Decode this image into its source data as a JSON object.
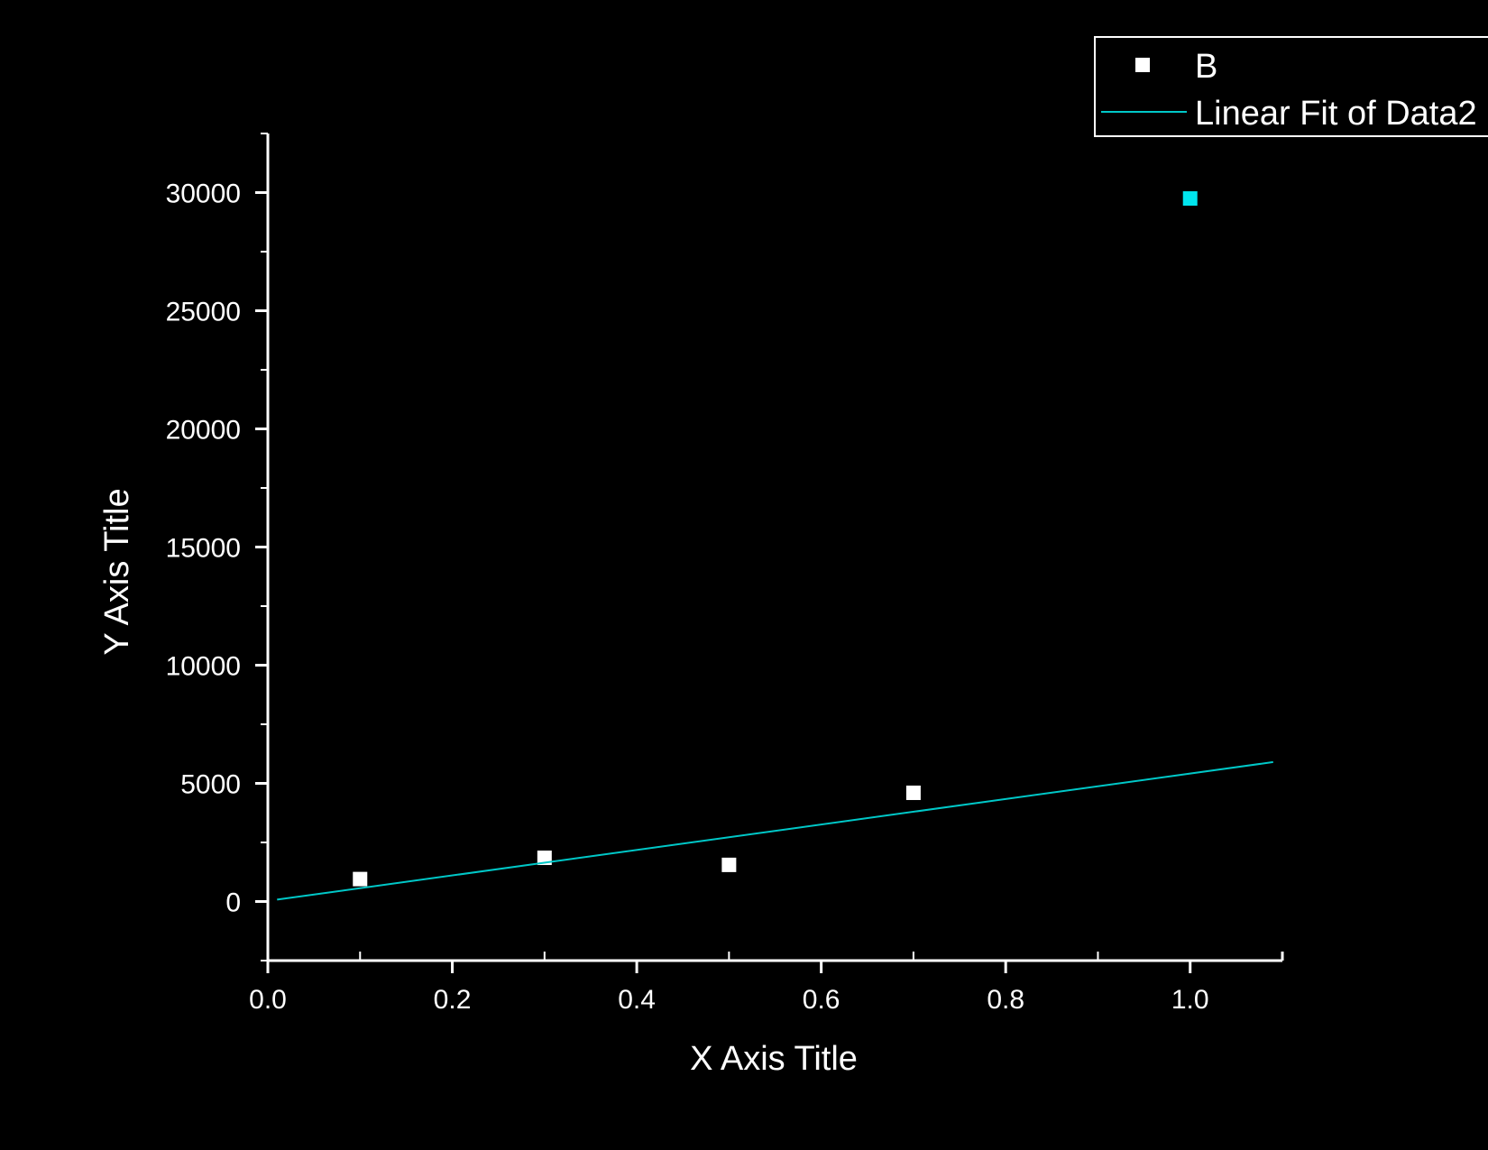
{
  "chart_data": {
    "type": "scatter",
    "title": "",
    "xlabel": "X Axis Title",
    "ylabel": "Y Axis Title",
    "xlim": [
      0.0,
      1.1
    ],
    "ylim": [
      -2500,
      32500
    ],
    "x_ticks": [
      0.0,
      0.2,
      0.4,
      0.6,
      0.8,
      1.0
    ],
    "x_tick_labels": [
      "0.0",
      "0.2",
      "0.4",
      "0.6",
      "0.8",
      "1.0"
    ],
    "y_ticks": [
      0,
      5000,
      10000,
      15000,
      20000,
      25000,
      30000
    ],
    "y_tick_labels": [
      "0",
      "5000",
      "10000",
      "15000",
      "20000",
      "25000",
      "30000"
    ],
    "grid": false,
    "legend": {
      "position": "top-right"
    },
    "background_color": "#000000",
    "axis_color": "#ffffff",
    "series": [
      {
        "name": "B",
        "kind": "scatter",
        "marker": "square",
        "color": "#ffffff",
        "x": [
          0.1,
          0.3,
          0.5,
          0.7
        ],
        "y": [
          950,
          1850,
          1550,
          4600
        ]
      },
      {
        "name": "",
        "kind": "scatter",
        "marker": "square",
        "color": "#00e5ee",
        "x": [
          1.0
        ],
        "y": [
          29750
        ]
      },
      {
        "name": "Linear Fit of Data2",
        "kind": "line",
        "color": "#00c8c8",
        "x": [
          0.01,
          1.09
        ],
        "y": [
          80,
          5900
        ]
      }
    ]
  }
}
